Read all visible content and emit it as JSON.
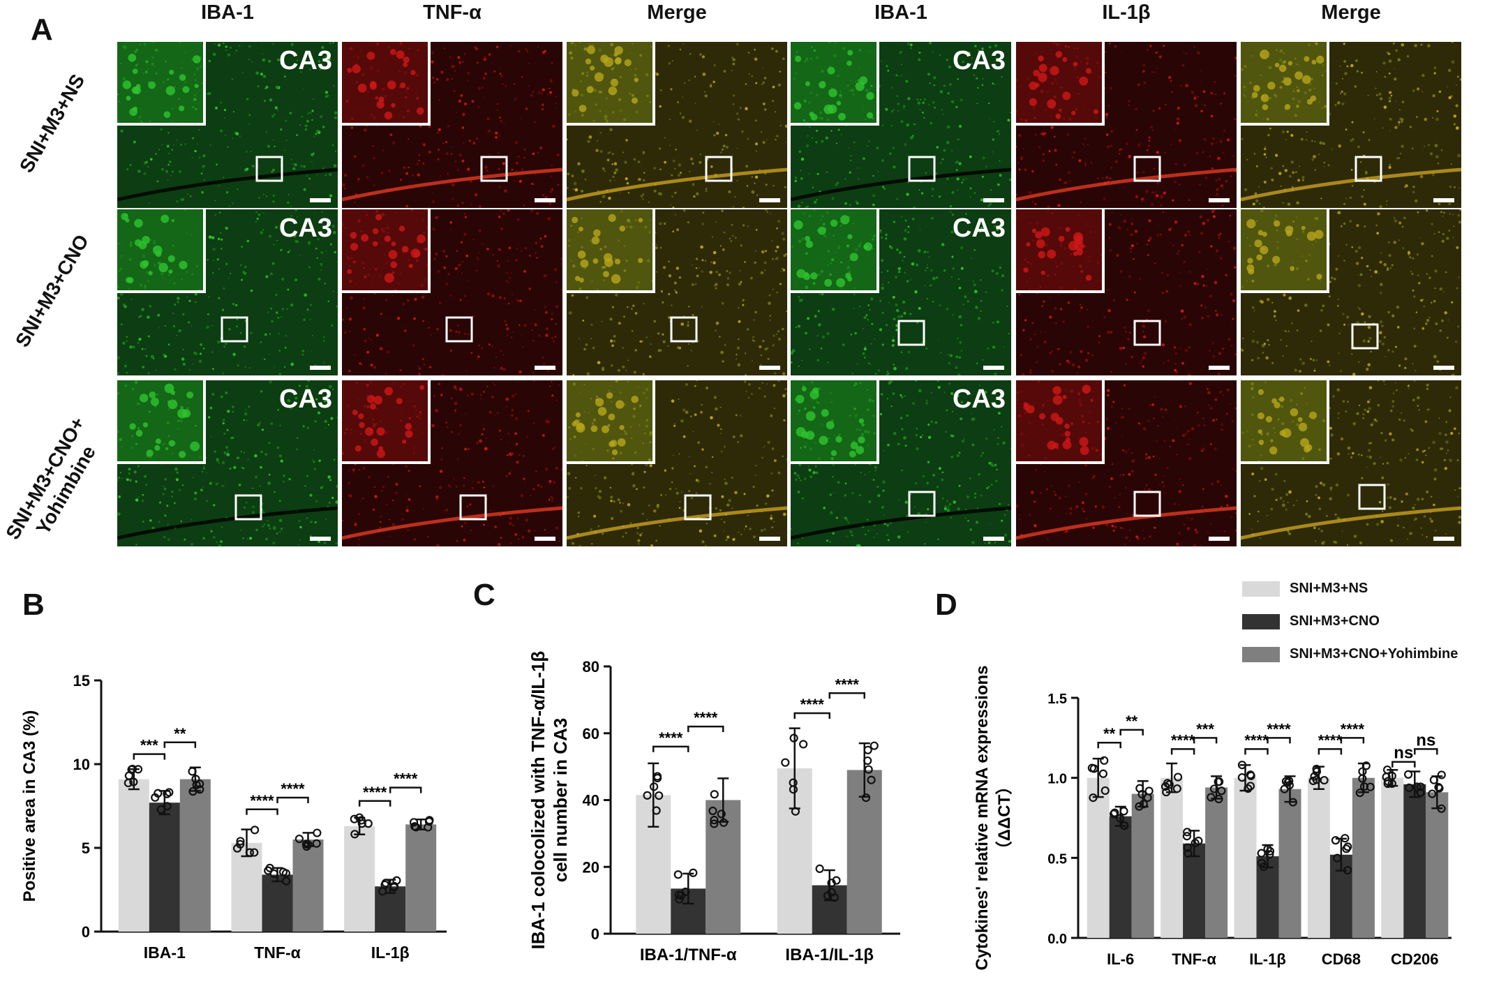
{
  "panel_A": {
    "letter": "A",
    "columns": [
      "IBA-1",
      "TNF-α",
      "Merge",
      "IBA-1",
      "IL-1β",
      "Merge"
    ],
    "rows": [
      "SNI+M3+NS",
      "SNI+M3+CNO",
      "SNI+M3+CNO+\nYohimbine"
    ],
    "region_label": "CA3",
    "colors": {
      "green": "#1fa51f",
      "red": "#b81212",
      "merge": "#5a7a1a",
      "background": "#0a120a"
    }
  },
  "legend": {
    "items": [
      {
        "name": "SNI+M3+NS",
        "color": "#d9d9d9"
      },
      {
        "name": "SNI+M3+CNO",
        "color": "#333333"
      },
      {
        "name": "SNI+M3+CNO+Yohimbine",
        "color": "#7f7f7f"
      }
    ]
  },
  "chart_data": [
    {
      "panel": "B",
      "type": "bar",
      "ylabel": "Positive area in CA3 (%)",
      "ylim": [
        0,
        15
      ],
      "yticks": [
        0,
        5,
        10,
        15
      ],
      "categories": [
        "IBA-1",
        "TNF-α",
        "IL-1β"
      ],
      "series": [
        {
          "name": "SNI+M3+NS",
          "values": [
            9.1,
            5.3,
            6.3
          ],
          "err": [
            0.6,
            0.8,
            0.5
          ]
        },
        {
          "name": "SNI+M3+CNO",
          "values": [
            7.7,
            3.4,
            2.7
          ],
          "err": [
            0.7,
            0.4,
            0.4
          ]
        },
        {
          "name": "SNI+M3+CNO+Yohimbine",
          "values": [
            9.1,
            5.5,
            6.4
          ],
          "err": [
            0.7,
            0.4,
            0.3
          ]
        }
      ],
      "significance": [
        {
          "cat": 0,
          "from": 0,
          "to": 1,
          "y": 10.6,
          "label": "***"
        },
        {
          "cat": 0,
          "from": 1,
          "to": 2,
          "y": 11.3,
          "label": "**"
        },
        {
          "cat": 1,
          "from": 0,
          "to": 1,
          "y": 7.3,
          "label": "****"
        },
        {
          "cat": 1,
          "from": 1,
          "to": 2,
          "y": 8.0,
          "label": "****"
        },
        {
          "cat": 2,
          "from": 0,
          "to": 1,
          "y": 7.8,
          "label": "****"
        },
        {
          "cat": 2,
          "from": 1,
          "to": 2,
          "y": 8.6,
          "label": "****"
        }
      ]
    },
    {
      "panel": "C",
      "type": "bar",
      "ylabel": "IBA-1 colocolized with TNF-α/IL-1β\ncell number in CA3",
      "ylim": [
        0,
        80
      ],
      "yticks": [
        0,
        20,
        40,
        60,
        80
      ],
      "categories": [
        "IBA-1/TNF-α",
        "IBA-1/IL-1β"
      ],
      "series": [
        {
          "name": "SNI+M3+NS",
          "values": [
            41.5,
            49.5
          ],
          "err": [
            9.5,
            12
          ]
        },
        {
          "name": "SNI+M3+CNO",
          "values": [
            13.5,
            14.5
          ],
          "err": [
            4.5,
            4.5
          ]
        },
        {
          "name": "SNI+M3+CNO+Yohimbine",
          "values": [
            40,
            49
          ],
          "err": [
            6.5,
            8
          ]
        }
      ],
      "significance": [
        {
          "cat": 0,
          "from": 0,
          "to": 1,
          "y": 56,
          "label": "****"
        },
        {
          "cat": 0,
          "from": 1,
          "to": 2,
          "y": 62,
          "label": "****"
        },
        {
          "cat": 1,
          "from": 0,
          "to": 1,
          "y": 66,
          "label": "****"
        },
        {
          "cat": 1,
          "from": 1,
          "to": 2,
          "y": 72,
          "label": "****"
        }
      ]
    },
    {
      "panel": "D",
      "type": "bar",
      "ylabel": "Cytokines' relative mRNA expressions\n（ΔΔCT）",
      "ylim": [
        0,
        1.5
      ],
      "yticks": [
        "0.0",
        "0.5",
        "1.0",
        "1.5"
      ],
      "categories": [
        "IL-6",
        "TNF-α",
        "IL-1β",
        "CD68",
        "CD206"
      ],
      "series": [
        {
          "name": "SNI+M3+NS",
          "values": [
            1.0,
            1.0,
            1.0,
            1.0,
            1.0
          ],
          "err": [
            0.12,
            0.09,
            0.08,
            0.07,
            0.05
          ]
        },
        {
          "name": "SNI+M3+CNO",
          "values": [
            0.76,
            0.59,
            0.51,
            0.52,
            0.96
          ],
          "err": [
            0.06,
            0.08,
            0.07,
            0.1,
            0.08
          ]
        },
        {
          "name": "SNI+M3+CNO+Yohimbine",
          "values": [
            0.9,
            0.94,
            0.93,
            1.0,
            0.91
          ],
          "err": [
            0.08,
            0.07,
            0.08,
            0.09,
            0.1
          ]
        }
      ],
      "significance": [
        {
          "cat": 0,
          "from": 0,
          "to": 1,
          "y": 1.22,
          "label": "**"
        },
        {
          "cat": 0,
          "from": 1,
          "to": 2,
          "y": 1.3,
          "label": "**"
        },
        {
          "cat": 1,
          "from": 0,
          "to": 1,
          "y": 1.18,
          "label": "****"
        },
        {
          "cat": 1,
          "from": 1,
          "to": 2,
          "y": 1.25,
          "label": "***"
        },
        {
          "cat": 2,
          "from": 0,
          "to": 1,
          "y": 1.18,
          "label": "****"
        },
        {
          "cat": 2,
          "from": 1,
          "to": 2,
          "y": 1.25,
          "label": "****"
        },
        {
          "cat": 3,
          "from": 0,
          "to": 1,
          "y": 1.18,
          "label": "****"
        },
        {
          "cat": 3,
          "from": 1,
          "to": 2,
          "y": 1.25,
          "label": "****"
        },
        {
          "cat": 4,
          "from": 0,
          "to": 1,
          "y": 1.1,
          "label": "ns"
        },
        {
          "cat": 4,
          "from": 1,
          "to": 2,
          "y": 1.18,
          "label": "ns"
        }
      ]
    }
  ]
}
